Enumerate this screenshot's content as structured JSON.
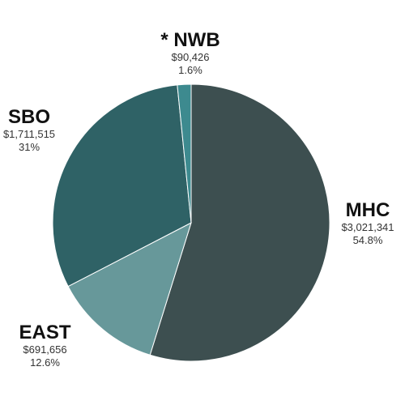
{
  "chart_data": {
    "type": "pie",
    "start_angle_deg": 0,
    "direction": "clockwise",
    "slices": [
      {
        "name": "MHC",
        "label": "MHC",
        "amount": "$3,021,341",
        "value": 54.8,
        "value_label": "54.8%",
        "color": "#3d4f50"
      },
      {
        "name": "EAST",
        "label": "EAST",
        "amount": "$691,656",
        "value": 12.6,
        "value_label": "12.6%",
        "color": "#67989a"
      },
      {
        "name": "SBO",
        "label": "SBO",
        "amount": "$1,711,515",
        "value": 31,
        "value_label": "31%",
        "color": "#2f6266"
      },
      {
        "name": "NWB",
        "label": "* NWB",
        "amount": "$90,426",
        "value": 1.6,
        "value_label": "1.6%",
        "color": "#3d8a8f"
      }
    ]
  }
}
